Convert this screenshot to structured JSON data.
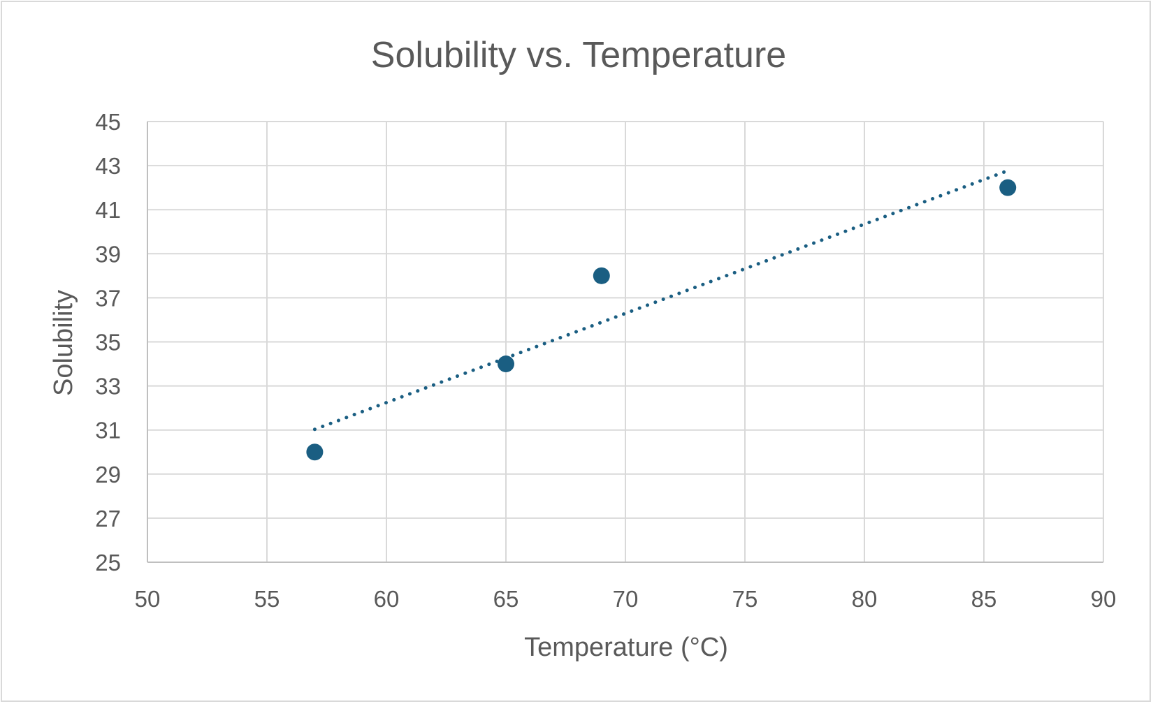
{
  "chart_data": {
    "type": "scatter",
    "title": "Solubility vs. Temperature",
    "xlabel": "Temperature (°C)",
    "ylabel": "Solubility",
    "xlim": [
      50,
      90
    ],
    "ylim": [
      25,
      45
    ],
    "xticks": [
      50,
      55,
      60,
      65,
      70,
      75,
      80,
      85,
      90
    ],
    "yticks": [
      25,
      27,
      29,
      31,
      33,
      35,
      37,
      39,
      41,
      43,
      45
    ],
    "grid": true,
    "legend": "none",
    "series": [
      {
        "x": [
          57,
          65,
          69,
          86
        ],
        "y": [
          30,
          34,
          38,
          42
        ],
        "color": "#1a5e82",
        "marker": "circle"
      }
    ],
    "trendline": {
      "type": "linear",
      "style": "dotted",
      "color": "#1a5e82",
      "x_range": [
        57,
        86
      ],
      "y_range": [
        31.03,
        42.77
      ]
    }
  }
}
